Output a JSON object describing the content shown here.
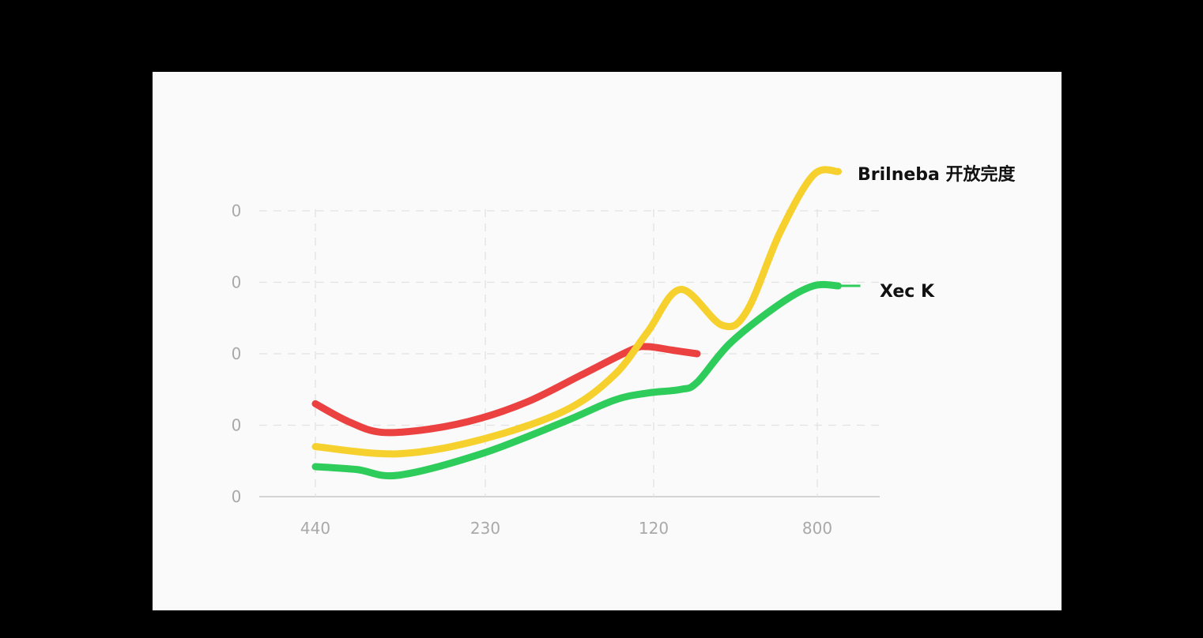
{
  "chart_data": {
    "type": "line",
    "x_ticks": [
      "440",
      "230",
      "120",
      "800"
    ],
    "y_ticks": [
      "0",
      "0",
      "0",
      "0",
      "0"
    ],
    "grid": true,
    "series": [
      {
        "key": "yellow",
        "name": "Brilneba 开放完度",
        "color": "#f6d12e",
        "x": [
          0.0,
          0.5,
          1.0,
          1.5,
          1.8,
          2.0,
          2.2,
          2.45,
          2.6,
          2.8,
          3.0,
          3.15
        ],
        "y": [
          0.7,
          0.6,
          0.8,
          1.2,
          1.7,
          2.3,
          2.9,
          2.4,
          2.6,
          3.7,
          4.5,
          4.55
        ]
      },
      {
        "key": "red",
        "name": "",
        "color": "#ec4141",
        "x": [
          0.0,
          0.2,
          0.4,
          0.7,
          1.0,
          1.3,
          1.6,
          1.9,
          2.0,
          2.15,
          2.3
        ],
        "y": [
          1.3,
          1.05,
          0.9,
          0.95,
          1.1,
          1.35,
          1.7,
          2.05,
          2.1,
          2.05,
          2.0
        ]
      },
      {
        "key": "green",
        "name": "Xec K",
        "color": "#2ecc5a",
        "x": [
          0.0,
          0.25,
          0.5,
          1.0,
          1.5,
          1.8,
          2.0,
          2.2,
          2.3,
          2.5,
          2.8,
          3.0,
          3.15
        ],
        "y": [
          0.42,
          0.38,
          0.3,
          0.6,
          1.05,
          1.35,
          1.45,
          1.5,
          1.6,
          2.15,
          2.7,
          2.95,
          2.95
        ]
      }
    ]
  }
}
